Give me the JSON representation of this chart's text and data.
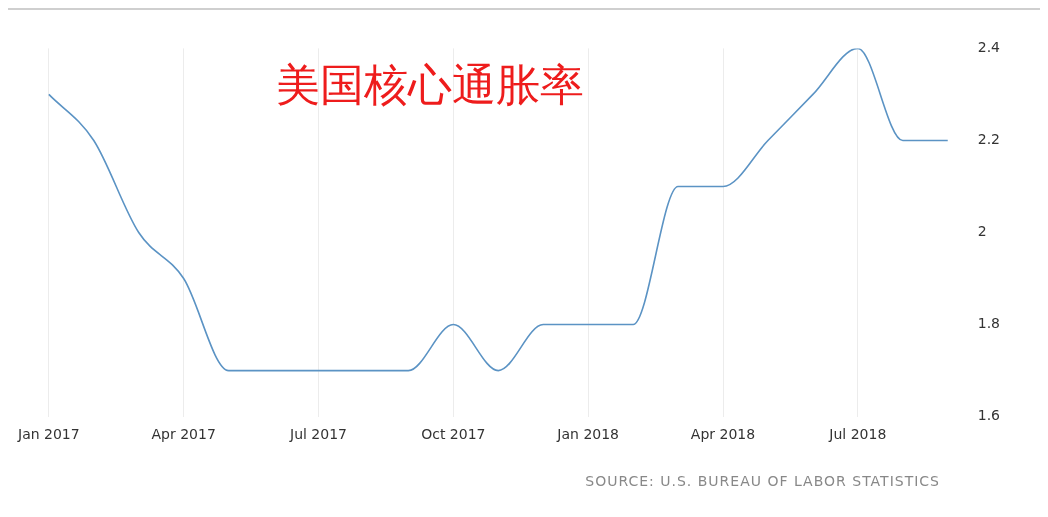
{
  "chart_data": {
    "type": "line",
    "title": "美国核心通胀率",
    "categories": [
      "Jan 2017",
      null,
      null,
      "Apr 2017",
      null,
      null,
      "Jul 2017",
      null,
      null,
      "Oct 2017",
      null,
      null,
      "Jan 2018",
      null,
      null,
      "Apr 2018",
      null,
      null,
      "Jul 2018",
      null,
      null
    ],
    "series": [
      {
        "color": "#5b93c4",
        "values": [
          2.3,
          2.2,
          2.0,
          1.9,
          1.7,
          1.7,
          1.7,
          1.7,
          1.7,
          1.8,
          1.7,
          1.8,
          1.8,
          1.8,
          2.1,
          2.1,
          2.2,
          2.3,
          2.4,
          2.2,
          2.2
        ]
      }
    ],
    "ylim": [
      1.6,
      2.4
    ],
    "yticks": [
      1.6,
      1.8,
      2,
      2.2,
      2.4
    ],
    "grid": "x",
    "legend": false,
    "marker": "none",
    "line_style": "solid",
    "annotations": [
      "SOURCE: U.S. BUREAU OF LABOR STATISTICS"
    ]
  }
}
